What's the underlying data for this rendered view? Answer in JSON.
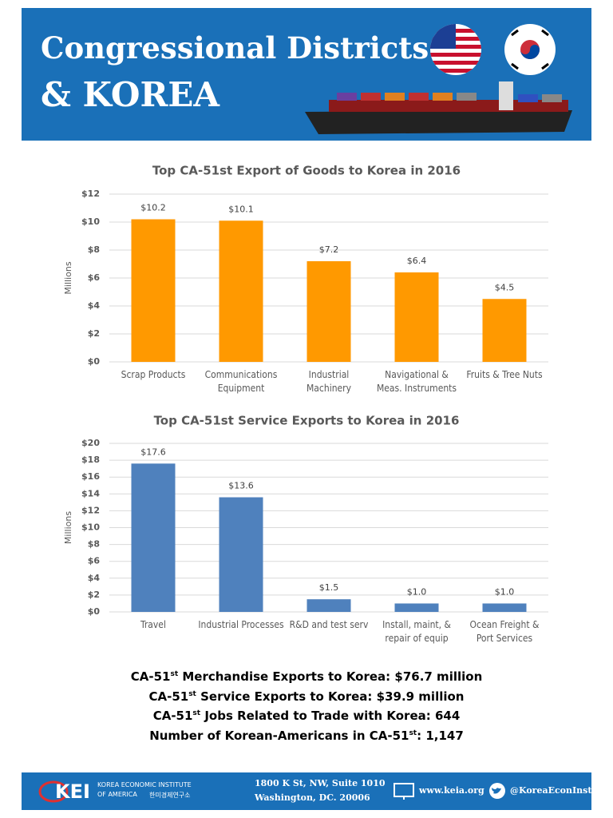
{
  "header": {
    "title_line1": "Congressional Districts",
    "title_line2": "& KOREA"
  },
  "chart_data": [
    {
      "type": "bar",
      "title": "Top CA-51st Export of Goods to Korea in 2016",
      "y_label": "Millions",
      "categories": [
        "Scrap Products",
        "Communications Equipment",
        "Industrial Machinery",
        "Navigational & Meas. Instruments",
        "Fruits & Tree Nuts"
      ],
      "values": [
        10.2,
        10.1,
        7.2,
        6.4,
        4.5
      ],
      "value_labels": [
        "$10.2",
        "$10.1",
        "$7.2",
        "$6.4",
        "$4.5"
      ],
      "color": "#ff9900",
      "ylim": [
        0,
        12
      ],
      "yticks": [
        {
          "value": 0,
          "label": "$0"
        },
        {
          "value": 2,
          "label": "$2"
        },
        {
          "value": 4,
          "label": "$4"
        },
        {
          "value": 6,
          "label": "$6"
        },
        {
          "value": 8,
          "label": "$8"
        },
        {
          "value": 10,
          "label": "$10"
        },
        {
          "value": 12,
          "label": "$12"
        }
      ],
      "grid": true
    },
    {
      "type": "bar",
      "title": "Top CA-51st Service Exports to Korea in 2016",
      "y_label": "Millions",
      "categories": [
        "Travel",
        "Industrial Processes",
        "R&D and test serv",
        "Install, maint, & repair of equip",
        "Ocean Freight & Port Services"
      ],
      "values": [
        17.6,
        13.6,
        1.5,
        1.0,
        1.0
      ],
      "value_labels": [
        "$17.6",
        "$13.6",
        "$1.5",
        "$1.0",
        "$1.0"
      ],
      "color": "#4f81bd",
      "ylim": [
        0,
        20
      ],
      "yticks": [
        {
          "value": 0,
          "label": "$0"
        },
        {
          "value": 2,
          "label": "$2"
        },
        {
          "value": 4,
          "label": "$4"
        },
        {
          "value": 6,
          "label": "$6"
        },
        {
          "value": 8,
          "label": "$8"
        },
        {
          "value": 10,
          "label": "$10"
        },
        {
          "value": 12,
          "label": "$12"
        },
        {
          "value": 14,
          "label": "$14"
        },
        {
          "value": 16,
          "label": "$16"
        },
        {
          "value": 18,
          "label": "$18"
        },
        {
          "value": 20,
          "label": "$20"
        }
      ],
      "grid": true
    }
  ],
  "stats": [
    {
      "pre": "CA-51",
      "sup": "st",
      "post": " Merchandise Exports to Korea: $76.7 million"
    },
    {
      "pre": "CA-51",
      "sup": "st",
      "post": " Service Exports to Korea: $39.9 million"
    },
    {
      "pre": "CA-51",
      "sup": "st",
      "post": " Jobs Related to Trade with Korea: 644"
    },
    {
      "pre": "Number of Korean-Americans in CA-51",
      "sup": "st",
      "post": ": 1,147"
    }
  ],
  "footer": {
    "logo": "KEI",
    "org_line1": "KOREA ECONOMIC INSTITUTE",
    "org_line2": "OF AMERICA",
    "org_korean": "한미경제연구소",
    "address_line1": "1800 K St, NW, Suite 1010",
    "address_line2": "Washington, DC. 20006",
    "website": "www.keia.org",
    "twitter": "@KoreaEconInst"
  }
}
